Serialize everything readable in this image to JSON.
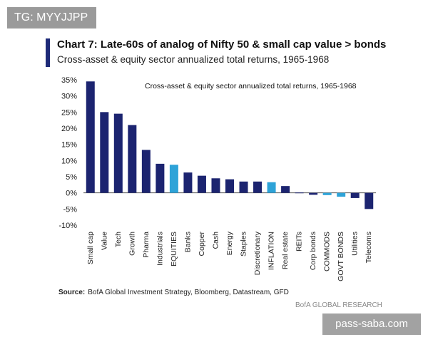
{
  "watermarks": {
    "top": "TG: MYYJJPP",
    "bottom": "pass-saba.com"
  },
  "colors": {
    "bar_primary": "#1c2470",
    "bar_highlight": "#2ea3d8",
    "accent": "#1e2a78"
  },
  "source": {
    "label": "Source:",
    "text": "BofA Global Investment Strategy, Bloomberg, Datastream, GFD"
  },
  "brand": "BofA GLOBAL RESEARCH",
  "chart_data": {
    "type": "bar",
    "title": "Chart 7: Late-60s of analog of Nifty 50 & small cap value > bonds",
    "subtitle": "Cross-asset & equity sector annualized total returns, 1965-1968",
    "annotation": "Cross-asset & equity sector annualized total returns, 1965-1968",
    "categories": [
      "Small cap",
      "Value",
      "Tech",
      "Growth",
      "Pharma",
      "Industrials",
      "EQUITIES",
      "Banks",
      "Copper",
      "Cash",
      "Energy",
      "Staples",
      "Discretionary",
      "INFLATION",
      "Real estate",
      "REITs",
      "Corp bonds",
      "COMMODS",
      "GOVT BONDS",
      "Utilities",
      "Telecoms"
    ],
    "values": [
      34.5,
      25.0,
      24.5,
      21.0,
      13.3,
      9.0,
      8.7,
      6.3,
      5.3,
      4.5,
      4.2,
      3.5,
      3.5,
      3.3,
      2.1,
      0.1,
      -0.6,
      -0.7,
      -1.2,
      -1.6,
      -5.0
    ],
    "highlighted": [
      "EQUITIES",
      "INFLATION",
      "COMMODS",
      "GOVT BONDS"
    ],
    "yticks": [
      "35%",
      "30%",
      "25%",
      "20%",
      "15%",
      "10%",
      "5%",
      "0%",
      "-5%",
      "-10%"
    ],
    "ylim": [
      -10,
      35
    ],
    "xlabel": "",
    "ylabel": "",
    "grid": false,
    "legend": "none"
  }
}
